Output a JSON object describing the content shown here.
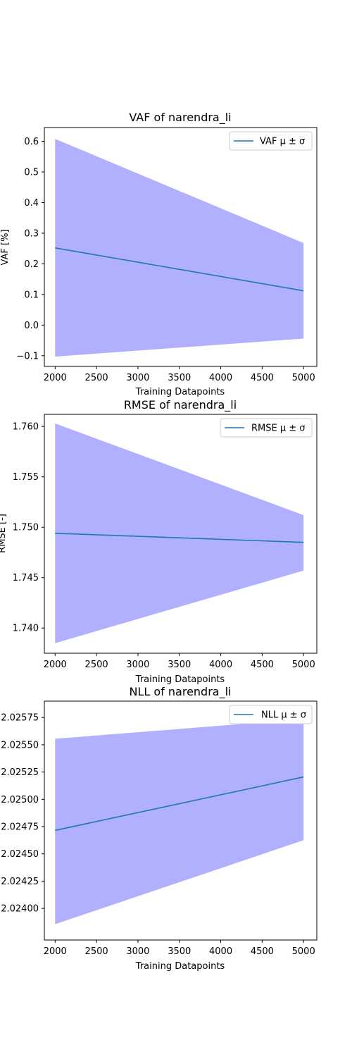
{
  "colors": {
    "line": "#1f77b4",
    "band": "#b0b0ff",
    "axes": "#000000",
    "legend_border": "#cccccc"
  },
  "chart_data": [
    {
      "type": "line",
      "title": "VAF of narendra_li",
      "xlabel": "Training Datapoints",
      "ylabel": "VAF [%]",
      "xlim": [
        1870,
        5160
      ],
      "ylim": [
        -0.135,
        0.645
      ],
      "xticks": [
        2000,
        2500,
        3000,
        3500,
        4000,
        4500,
        5000
      ],
      "xtick_labels": [
        "2000",
        "2500",
        "3000",
        "3500",
        "4000",
        "4500",
        "5000"
      ],
      "yticks": [
        -0.1,
        0.0,
        0.1,
        0.2,
        0.3,
        0.4,
        0.5,
        0.6
      ],
      "ytick_labels": [
        "−0.1",
        "0.0",
        "0.1",
        "0.2",
        "0.3",
        "0.4",
        "0.5",
        "0.6"
      ],
      "legend": "upper right",
      "legend_label": "VAF μ ± σ",
      "x": [
        2000,
        5000
      ],
      "mean": [
        0.252,
        0.112
      ],
      "lower": [
        -0.103,
        -0.044
      ],
      "upper": [
        0.608,
        0.268
      ]
    },
    {
      "type": "line",
      "title": "RMSE of narendra_li",
      "xlabel": "Training Datapoints",
      "ylabel": "RMSE [-]",
      "xlim": [
        1870,
        5160
      ],
      "ylim": [
        1.7375,
        1.7612
      ],
      "xticks": [
        2000,
        2500,
        3000,
        3500,
        4000,
        4500,
        5000
      ],
      "xtick_labels": [
        "2000",
        "2500",
        "3000",
        "3500",
        "4000",
        "4500",
        "5000"
      ],
      "yticks": [
        1.74,
        1.745,
        1.75,
        1.755,
        1.76
      ],
      "ytick_labels": [
        "1.740",
        "1.745",
        "1.750",
        "1.755",
        "1.760"
      ],
      "legend": "upper right",
      "legend_label": "RMSE μ ± σ",
      "x": [
        2000,
        5000
      ],
      "mean": [
        1.7494,
        1.7485
      ],
      "lower": [
        1.7385,
        1.7457
      ],
      "upper": [
        1.7603,
        1.7512
      ]
    },
    {
      "type": "line",
      "title": "NLL of narendra_li",
      "xlabel": "Training Datapoints",
      "ylabel": "",
      "xlim": [
        1870,
        5160
      ],
      "ylim": [
        2.02371,
        2.0259
      ],
      "xticks": [
        2000,
        2500,
        3000,
        3500,
        4000,
        4500,
        5000
      ],
      "xtick_labels": [
        "2000",
        "2500",
        "3000",
        "3500",
        "4000",
        "4500",
        "5000"
      ],
      "yticks": [
        2.024,
        2.02425,
        2.0245,
        2.02475,
        2.025,
        2.02525,
        2.0255,
        2.02575
      ],
      "ytick_labels": [
        "2.02400",
        "2.02425",
        "2.02450",
        "2.02475",
        "2.02500",
        "2.02525",
        "2.02550",
        "2.02575"
      ],
      "legend": "upper right",
      "legend_label": "NLL μ ± σ",
      "x": [
        2000,
        5000
      ],
      "mean": [
        2.024715,
        2.025205
      ],
      "lower": [
        2.023855,
        2.024625
      ],
      "upper": [
        2.025555,
        2.025735
      ]
    }
  ]
}
